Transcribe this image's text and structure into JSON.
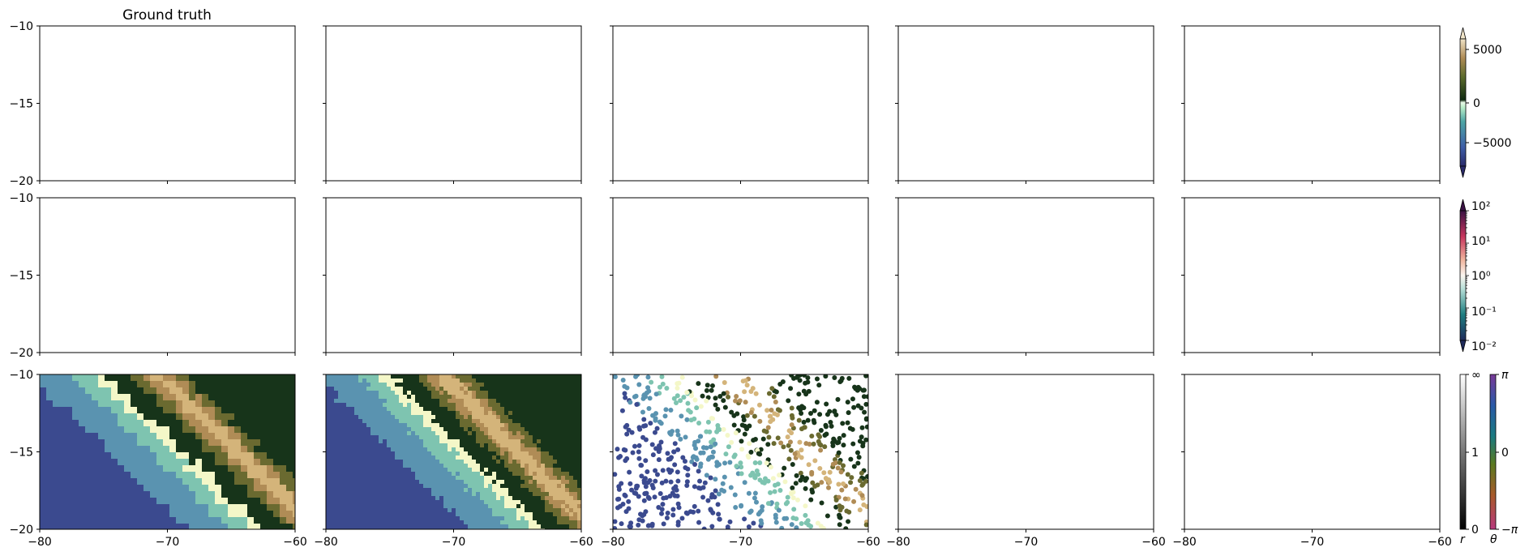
{
  "figure": {
    "panel_title": "Ground truth"
  },
  "chart_data": [
    {
      "type": "map-grid",
      "rows": 3,
      "cols": 5,
      "xlim": [
        -80,
        -60
      ],
      "ylim": [
        -20,
        -10
      ],
      "xticks": [
        "−80",
        "−70",
        "−60"
      ],
      "yticks": [
        "−10",
        "−15",
        "−20"
      ],
      "populated_panels": [
        {
          "row": 3,
          "col": 1,
          "content": "raster",
          "variable": "elevation"
        },
        {
          "row": 3,
          "col": 2,
          "content": "raster",
          "variable": "elevation"
        },
        {
          "row": 3,
          "col": 3,
          "content": "scatter",
          "variable": "elevation"
        }
      ],
      "empty_panels": "all others"
    },
    {
      "type": "colorbar",
      "row": 1,
      "colormap": "topographic (blue → teal → pale green → dark green → tan → white)",
      "ticks": [
        "−5000",
        "0",
        "5000"
      ],
      "range": [
        -8000,
        7000
      ],
      "extend": "both"
    },
    {
      "type": "colorbar",
      "row": 2,
      "colormap": "diverging (navy → teal → white → salmon → magenta → purple)",
      "scale": "log",
      "ticks": [
        "10⁻²",
        "10⁻¹",
        "10⁰",
        "10¹",
        "10²"
      ],
      "range": [
        0.01,
        100
      ],
      "extend": "both"
    },
    {
      "type": "colorbar",
      "row": 3,
      "name": "r",
      "colormap": "grayscale (black → white)",
      "ticks": [
        "0",
        "1",
        "∞"
      ]
    },
    {
      "type": "colorbar",
      "row": 3,
      "name": "θ",
      "colormap": "cyclic phase",
      "ticks": [
        "−π",
        "0",
        "π"
      ]
    }
  ],
  "colors": {
    "deep_ocean": "#3b4a8f",
    "ocean": "#5a93b0",
    "shallow": "#7ec4b0",
    "coast": "#f4f7c8",
    "lowland": "#17341a",
    "highland": "#b08c56",
    "peak": "#d4b47a"
  }
}
